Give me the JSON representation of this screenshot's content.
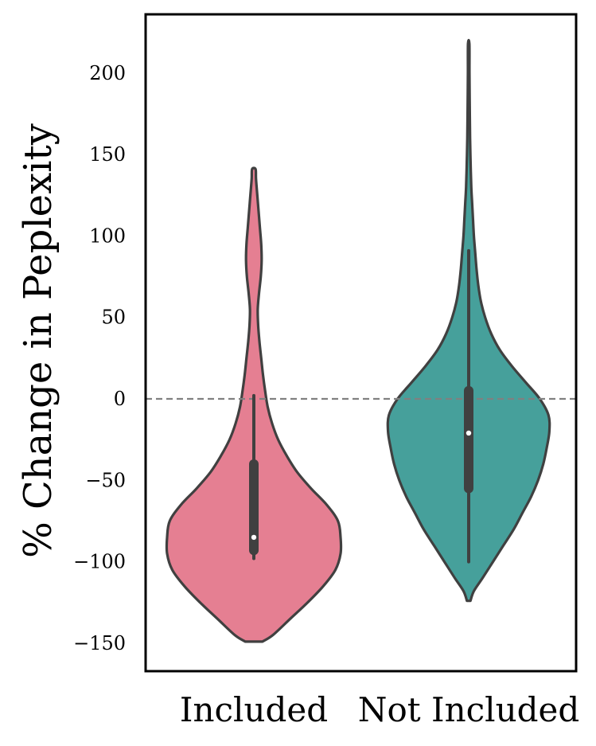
{
  "chart_data": {
    "type": "violin",
    "ylabel": "% Change in Peplexity",
    "xlabel": "",
    "ylim": [
      -165,
      238
    ],
    "yticks": [
      200,
      150,
      100,
      50,
      0,
      -50,
      -100,
      -150
    ],
    "ytick_labels": [
      "200",
      "150",
      "100",
      "50",
      "0",
      "−50",
      "−100",
      "−150"
    ],
    "reference_line": {
      "y": 0,
      "style": "dashed",
      "color": "#808080"
    },
    "categories": [
      "Included",
      "Not Included"
    ],
    "series": [
      {
        "color": "#e57f92",
        "outline": "#404040",
        "kde_range": [
          -149,
          141
        ],
        "box": {
          "whisker_low": -98,
          "q1": -93,
          "median": -85,
          "q3": -40,
          "whisker_high": 2
        },
        "density": [
          [
            -149,
            0.1
          ],
          [
            -145,
            0.22
          ],
          [
            -135,
            0.42
          ],
          [
            -125,
            0.62
          ],
          [
            -115,
            0.8
          ],
          [
            -105,
            0.94
          ],
          [
            -95,
            1.0
          ],
          [
            -85,
            1.0
          ],
          [
            -75,
            0.97
          ],
          [
            -65,
            0.84
          ],
          [
            -55,
            0.66
          ],
          [
            -45,
            0.5
          ],
          [
            -35,
            0.38
          ],
          [
            -25,
            0.28
          ],
          [
            -15,
            0.21
          ],
          [
            -5,
            0.16
          ],
          [
            5,
            0.13
          ],
          [
            15,
            0.105
          ],
          [
            25,
            0.085
          ],
          [
            35,
            0.065
          ],
          [
            45,
            0.05
          ],
          [
            55,
            0.045
          ],
          [
            65,
            0.06
          ],
          [
            75,
            0.08
          ],
          [
            85,
            0.09
          ],
          [
            95,
            0.085
          ],
          [
            105,
            0.07
          ],
          [
            115,
            0.055
          ],
          [
            125,
            0.04
          ],
          [
            135,
            0.025
          ],
          [
            141,
            0.02
          ]
        ]
      },
      {
        "color": "#46a09b",
        "outline": "#404040",
        "kde_range": [
          -124,
          218
        ],
        "box": {
          "whisker_low": -100,
          "q1": -55,
          "median": -21,
          "q3": 5,
          "whisker_high": 91
        },
        "density": [
          [
            -124,
            0.02
          ],
          [
            -118,
            0.06
          ],
          [
            -110,
            0.16
          ],
          [
            -100,
            0.28
          ],
          [
            -90,
            0.4
          ],
          [
            -80,
            0.52
          ],
          [
            -70,
            0.62
          ],
          [
            -60,
            0.72
          ],
          [
            -50,
            0.8
          ],
          [
            -40,
            0.86
          ],
          [
            -30,
            0.9
          ],
          [
            -20,
            0.93
          ],
          [
            -10,
            0.92
          ],
          [
            0,
            0.82
          ],
          [
            10,
            0.66
          ],
          [
            20,
            0.5
          ],
          [
            30,
            0.36
          ],
          [
            40,
            0.26
          ],
          [
            50,
            0.19
          ],
          [
            60,
            0.14
          ],
          [
            70,
            0.11
          ],
          [
            80,
            0.09
          ],
          [
            90,
            0.075
          ],
          [
            100,
            0.06
          ],
          [
            110,
            0.05
          ],
          [
            120,
            0.04
          ],
          [
            130,
            0.03
          ],
          [
            145,
            0.022
          ],
          [
            160,
            0.016
          ],
          [
            180,
            0.012
          ],
          [
            200,
            0.009
          ],
          [
            218,
            0.008
          ]
        ]
      }
    ],
    "grid": false,
    "legend": "none"
  }
}
